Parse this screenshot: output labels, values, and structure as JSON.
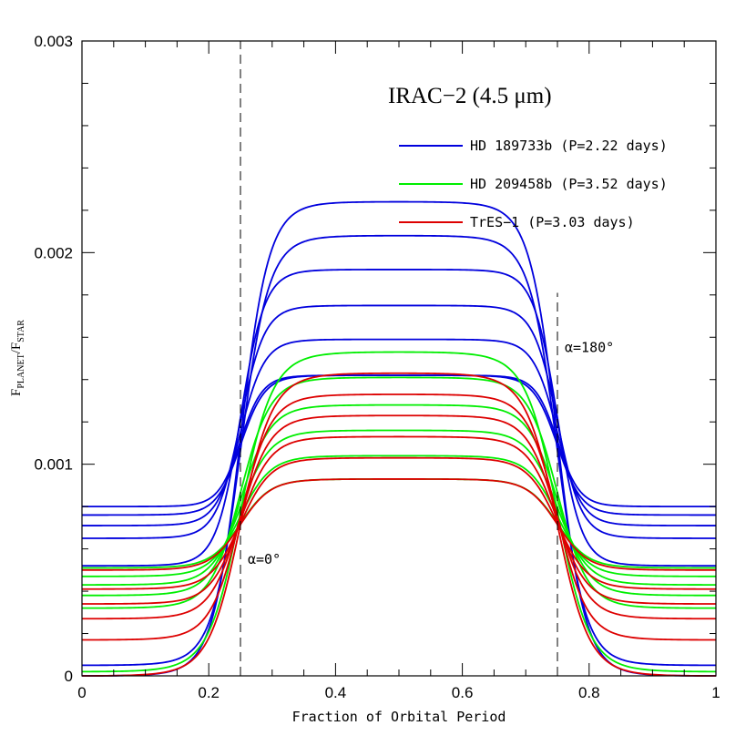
{
  "chart_data": {
    "type": "line",
    "title": "IRAC−2 (4.5 μm)",
    "xlabel": "Fraction of Orbital Period",
    "ylabel": {
      "base": "F",
      "num_sub": "PLANET",
      "den_sub": "STAR"
    },
    "xlim": [
      0,
      1
    ],
    "ylim": [
      0,
      0.003
    ],
    "x_ticks": [
      {
        "v": 0,
        "label": "0"
      },
      {
        "v": 0.2,
        "label": "0.2"
      },
      {
        "v": 0.4,
        "label": "0.4"
      },
      {
        "v": 0.6,
        "label": "0.6"
      },
      {
        "v": 0.8,
        "label": "0.8"
      },
      {
        "v": 1,
        "label": "1"
      }
    ],
    "y_ticks": [
      {
        "v": 0,
        "label": "0"
      },
      {
        "v": 0.001,
        "label": "0.001"
      },
      {
        "v": 0.002,
        "label": "0.002"
      },
      {
        "v": 0.003,
        "label": "0.003"
      }
    ],
    "grid": false,
    "legend_position": "top-right",
    "annotations": [
      {
        "text": "α=0°",
        "x": 0.25,
        "y": 0.00053
      },
      {
        "text": "α=180°",
        "x": 0.75,
        "y": 0.00153
      }
    ],
    "vlines": [
      {
        "x": 0.25,
        "ymin": 0,
        "ymax": 0.003
      },
      {
        "x": 0.75,
        "ymin": 0,
        "ymax": 0.00181
      }
    ],
    "series": [
      {
        "name": "HD 189733b (P=2.22 days)",
        "color": "#0000dd",
        "curves": [
          {
            "max": 0.00224,
            "min": 0.0,
            "width": 0.14
          },
          {
            "max": 0.00208,
            "min": 5e-05,
            "width": 0.14
          },
          {
            "max": 0.00192,
            "min": 0.00052,
            "width": 0.12
          },
          {
            "max": 0.00175,
            "min": 0.00065,
            "width": 0.12
          },
          {
            "max": 0.00159,
            "min": 0.00071,
            "width": 0.12
          },
          {
            "max": 0.00142,
            "min": 0.00076,
            "width": 0.12
          },
          {
            "max": 0.00142,
            "min": 0.0008,
            "width": 0.11
          }
        ]
      },
      {
        "name": "HD 209458b (P=3.52 days)",
        "color": "#00ee00",
        "curves": [
          {
            "max": 0.00153,
            "min": 2e-05,
            "width": 0.16
          },
          {
            "max": 0.00141,
            "min": 0.00032,
            "width": 0.15
          },
          {
            "max": 0.00128,
            "min": 0.00038,
            "width": 0.15
          },
          {
            "max": 0.00116,
            "min": 0.00043,
            "width": 0.15
          },
          {
            "max": 0.00104,
            "min": 0.00047,
            "width": 0.15
          },
          {
            "max": 0.00093,
            "min": 0.00051,
            "width": 0.15
          }
        ]
      },
      {
        "name": "TrES−1 (P=3.03 days)",
        "color": "#dd0000",
        "curves": [
          {
            "max": 0.00143,
            "min": 0.0,
            "width": 0.16
          },
          {
            "max": 0.00133,
            "min": 0.00017,
            "width": 0.15
          },
          {
            "max": 0.00123,
            "min": 0.00027,
            "width": 0.15
          },
          {
            "max": 0.00113,
            "min": 0.00034,
            "width": 0.15
          },
          {
            "max": 0.00103,
            "min": 0.00041,
            "width": 0.15
          },
          {
            "max": 0.00093,
            "min": 0.0005,
            "width": 0.15
          }
        ]
      }
    ]
  }
}
